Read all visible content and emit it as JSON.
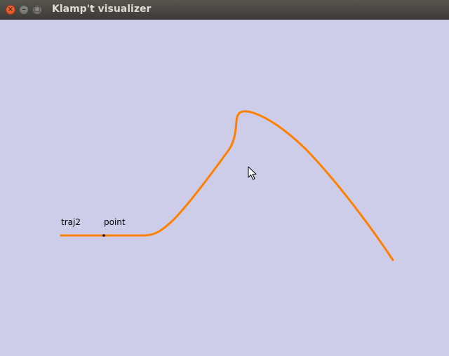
{
  "window": {
    "title": "Klamp't visualizer",
    "close_glyph": "×",
    "minimize_glyph": "–",
    "maximize_glyph": "□"
  },
  "scene": {
    "background_color": "#cecde9",
    "trajectory": {
      "label": "traj2",
      "color": "#ff8000"
    },
    "point": {
      "label": "point",
      "color": "#000000"
    }
  },
  "icons": {
    "cursor": "mouse-pointer-icon"
  }
}
